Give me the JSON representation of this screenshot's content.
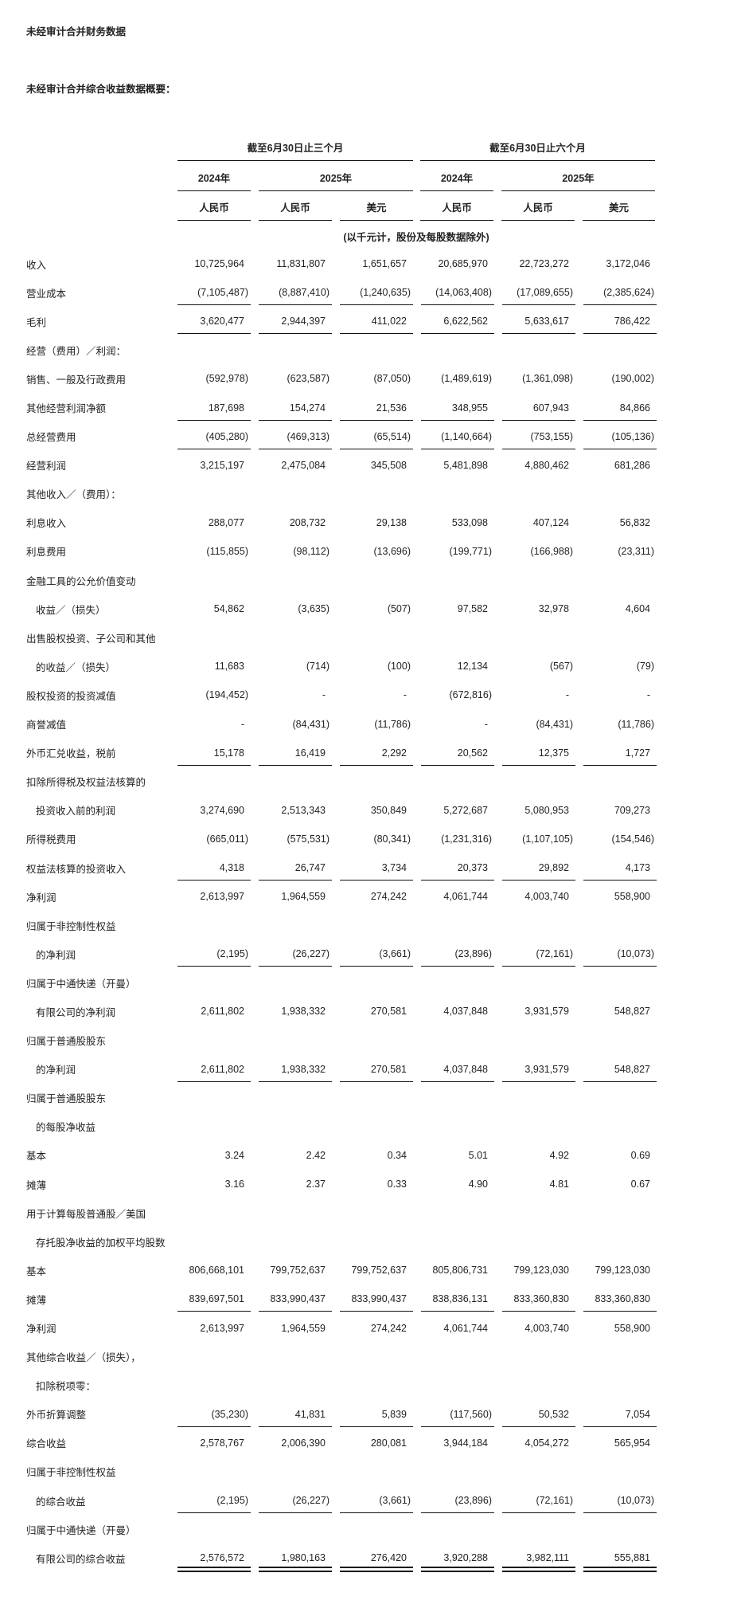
{
  "title": "未经审计合并财务数据",
  "subtitle": "未经审计合并综合收益数据概要：",
  "header": {
    "groups": [
      "截至6月30日止三个月",
      "截至6月30日止六个月"
    ],
    "years": [
      "2024年",
      "2025年",
      "2024年",
      "2025年"
    ],
    "currencies": [
      "人民币",
      "人民币",
      "美元",
      "人民币",
      "人民币",
      "美元"
    ],
    "note": "(以千元计，股份及每股数据除外)"
  },
  "rows": [
    {
      "label": "收入",
      "values": [
        "10,725,964",
        "11,831,807",
        "1,651,657",
        "20,685,970",
        "22,723,272",
        "3,172,046"
      ]
    },
    {
      "label": "营业成本",
      "values": [
        "(7,105,487)",
        "(8,887,410)",
        "(1,240,635)",
        "(14,063,408)",
        "(17,089,655)",
        "(2,385,624)"
      ],
      "line": "single"
    },
    {
      "label": "毛利",
      "values": [
        "3,620,477",
        "2,944,397",
        "411,022",
        "6,622,562",
        "5,633,617",
        "786,422"
      ],
      "line": "single"
    },
    {
      "label": "经营（费用）／利润："
    },
    {
      "label": "销售、一般及行政费用",
      "values": [
        "(592,978)",
        "(623,587)",
        "(87,050)",
        "(1,489,619)",
        "(1,361,098)",
        "(190,002)"
      ]
    },
    {
      "label": "其他经营利润净额",
      "values": [
        "187,698",
        "154,274",
        "21,536",
        "348,955",
        "607,943",
        "84,866"
      ],
      "line": "single"
    },
    {
      "label": "总经营费用",
      "values": [
        "(405,280)",
        "(469,313)",
        "(65,514)",
        "(1,140,664)",
        "(753,155)",
        "(105,136)"
      ],
      "line": "single"
    },
    {
      "label": "经营利润",
      "values": [
        "3,215,197",
        "2,475,084",
        "345,508",
        "5,481,898",
        "4,880,462",
        "681,286"
      ]
    },
    {
      "label": "其他收入／（费用）："
    },
    {
      "label": "利息收入",
      "values": [
        "288,077",
        "208,732",
        "29,138",
        "533,098",
        "407,124",
        "56,832"
      ]
    },
    {
      "label": "利息费用",
      "values": [
        "(115,855)",
        "(98,112)",
        "(13,696)",
        "(199,771)",
        "(166,988)",
        "(23,311)"
      ]
    },
    {
      "label": "金融工具的公允价值变动"
    },
    {
      "label": "收益／（损失）",
      "indent": true,
      "values": [
        "54,862",
        "(3,635)",
        "(507)",
        "97,582",
        "32,978",
        "4,604"
      ]
    },
    {
      "label": "出售股权投资、子公司和其他"
    },
    {
      "label": "的收益／（损失）",
      "indent": true,
      "values": [
        "11,683",
        "(714)",
        "(100)",
        "12,134",
        "(567)",
        "(79)"
      ]
    },
    {
      "label": "股权投资的投资减值",
      "values": [
        "(194,452)",
        "-",
        "-",
        "(672,816)",
        "-",
        "-"
      ]
    },
    {
      "label": "商誉减值",
      "values": [
        "-",
        "(84,431)",
        "(11,786)",
        "-",
        "(84,431)",
        "(11,786)"
      ]
    },
    {
      "label": "外币汇兑收益，税前",
      "values": [
        "15,178",
        "16,419",
        "2,292",
        "20,562",
        "12,375",
        "1,727"
      ],
      "line": "single"
    },
    {
      "label": "扣除所得税及权益法核算的"
    },
    {
      "label": "投资收入前的利润",
      "indent": true,
      "values": [
        "3,274,690",
        "2,513,343",
        "350,849",
        "5,272,687",
        "5,080,953",
        "709,273"
      ]
    },
    {
      "label": "所得税费用",
      "values": [
        "(665,011)",
        "(575,531)",
        "(80,341)",
        "(1,231,316)",
        "(1,107,105)",
        "(154,546)"
      ]
    },
    {
      "label": "权益法核算的投资收入",
      "values": [
        "4,318",
        "26,747",
        "3,734",
        "20,373",
        "29,892",
        "4,173"
      ],
      "line": "single"
    },
    {
      "label": "净利润",
      "values": [
        "2,613,997",
        "1,964,559",
        "274,242",
        "4,061,744",
        "4,003,740",
        "558,900"
      ]
    },
    {
      "label": "归属于非控制性权益"
    },
    {
      "label": "的净利润",
      "indent": true,
      "values": [
        "(2,195)",
        "(26,227)",
        "(3,661)",
        "(23,896)",
        "(72,161)",
        "(10,073)"
      ],
      "line": "single"
    },
    {
      "label": "归属于中通快递（开曼）"
    },
    {
      "label": "有限公司的净利润",
      "indent": true,
      "values": [
        "2,611,802",
        "1,938,332",
        "270,581",
        "4,037,848",
        "3,931,579",
        "548,827"
      ]
    },
    {
      "label": "归属于普通股股东"
    },
    {
      "label": "的净利润",
      "indent": true,
      "values": [
        "2,611,802",
        "1,938,332",
        "270,581",
        "4,037,848",
        "3,931,579",
        "548,827"
      ],
      "line": "single"
    },
    {
      "label": "归属于普通股股东"
    },
    {
      "label": "的每股净收益",
      "indent": true
    },
    {
      "label": "基本",
      "values": [
        "3.24",
        "2.42",
        "0.34",
        "5.01",
        "4.92",
        "0.69"
      ]
    },
    {
      "label": "摊薄",
      "values": [
        "3.16",
        "2.37",
        "0.33",
        "4.90",
        "4.81",
        "0.67"
      ]
    },
    {
      "label": "用于计算每股普通股／美国"
    },
    {
      "label": "存托股净收益的加权平均股数",
      "indent": true
    },
    {
      "label": "基本",
      "values": [
        "806,668,101",
        "799,752,637",
        "799,752,637",
        "805,806,731",
        "799,123,030",
        "799,123,030"
      ]
    },
    {
      "label": "摊薄",
      "values": [
        "839,697,501",
        "833,990,437",
        "833,990,437",
        "838,836,131",
        "833,360,830",
        "833,360,830"
      ],
      "line": "single"
    },
    {
      "label": "净利润",
      "values": [
        "2,613,997",
        "1,964,559",
        "274,242",
        "4,061,744",
        "4,003,740",
        "558,900"
      ]
    },
    {
      "label": "其他综合收益／（损失），"
    },
    {
      "label": "扣除税项零：",
      "indent": true
    },
    {
      "label": "外币折算调整",
      "values": [
        "(35,230)",
        "41,831",
        "5,839",
        "(117,560)",
        "50,532",
        "7,054"
      ],
      "line": "single"
    },
    {
      "label": "综合收益",
      "values": [
        "2,578,767",
        "2,006,390",
        "280,081",
        "3,944,184",
        "4,054,272",
        "565,954"
      ]
    },
    {
      "label": "归属于非控制性权益"
    },
    {
      "label": "的综合收益",
      "indent": true,
      "values": [
        "(2,195)",
        "(26,227)",
        "(3,661)",
        "(23,896)",
        "(72,161)",
        "(10,073)"
      ],
      "line": "single"
    },
    {
      "label": "归属于中通快递（开曼）"
    },
    {
      "label": "有限公司的综合收益",
      "indent": true,
      "values": [
        "2,576,572",
        "1,980,163",
        "276,420",
        "3,920,288",
        "3,982,111",
        "555,881"
      ],
      "line": "double"
    }
  ]
}
